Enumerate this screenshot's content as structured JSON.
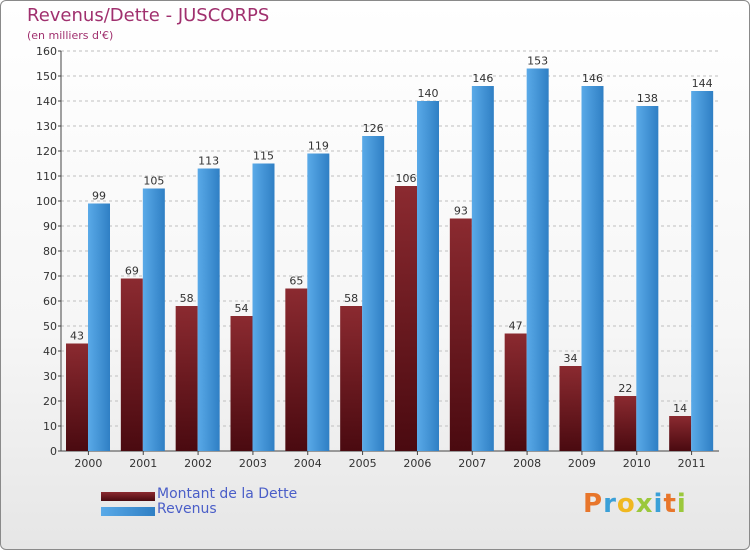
{
  "title": "Revenus/Dette - JUSCORPS",
  "subtitle": "(en milliers d'€)",
  "colors": {
    "title": "#a0306e",
    "debt_top": "#8b2a30",
    "debt_bottom": "#4a0a10",
    "revenue_light": "#5aaae8",
    "revenue_dark": "#2f7fc4",
    "axis_text": "#333333",
    "grid": "#bfbfbf",
    "legend_text": "#4a5ec8"
  },
  "legend": {
    "debt_label": "Montant de la Dette",
    "revenue_label": "Revenus"
  },
  "brand": {
    "text": "Proxiti",
    "letter_colors": [
      "#e8762b",
      "#3aa0d8",
      "#f0b820",
      "#9bc83c",
      "#3aa0d8",
      "#e8762b",
      "#9bc83c"
    ]
  },
  "chart_data": {
    "type": "bar",
    "title": "Revenus/Dette - JUSCORPS",
    "subtitle": "(en milliers d'€)",
    "categories": [
      "2000",
      "2001",
      "2002",
      "2003",
      "2004",
      "2005",
      "2006",
      "2007",
      "2008",
      "2009",
      "2010",
      "2011"
    ],
    "series": [
      {
        "name": "Montant de la Dette",
        "values": [
          43,
          69,
          58,
          54,
          65,
          58,
          106,
          93,
          47,
          34,
          22,
          14
        ]
      },
      {
        "name": "Revenus",
        "values": [
          99,
          105,
          113,
          115,
          119,
          126,
          140,
          146,
          153,
          146,
          138,
          144
        ]
      }
    ],
    "ylim": [
      0,
      160
    ],
    "yticks": [
      0,
      10,
      20,
      30,
      40,
      50,
      60,
      70,
      80,
      90,
      100,
      110,
      120,
      130,
      140,
      150,
      160
    ],
    "grid": true,
    "legend_position": "bottom-left"
  }
}
